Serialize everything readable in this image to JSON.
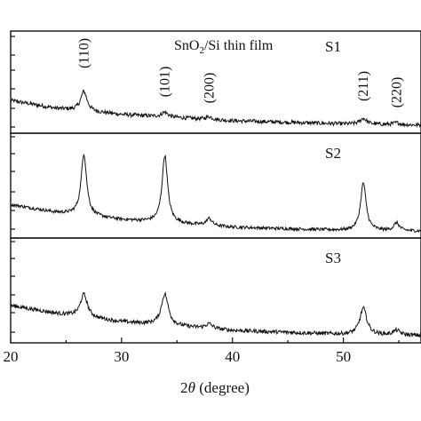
{
  "chart_data": {
    "type": "line",
    "title_prefix": "SnO",
    "title_sub": "2",
    "title_suffix": "/Si thin film",
    "xlabel_prefix": "2",
    "xlabel_theta": "θ",
    "xlabel_suffix": " (degree)",
    "ylabel": "",
    "xlim": [
      20,
      57
    ],
    "x_ticks": [
      "20",
      "30",
      "40",
      "50"
    ],
    "grid": false,
    "peak_labels": [
      {
        "text": "(110)",
        "x": 26.6
      },
      {
        "text": "(101)",
        "x": 33.9
      },
      {
        "text": "(200)",
        "x": 37.9
      },
      {
        "text": "(211)",
        "x": 51.8
      },
      {
        "text": "(220)",
        "x": 54.8
      }
    ],
    "series": [
      {
        "name": "S1",
        "baseline": [
          [
            20,
            0.68
          ],
          [
            24,
            0.48
          ],
          [
            30,
            0.32
          ],
          [
            40,
            0.16
          ],
          [
            50,
            0.08
          ],
          [
            57,
            0.05
          ]
        ],
        "peaks": [
          [
            26.6,
            0.5,
            0.35
          ],
          [
            33.9,
            0.12,
            0.35
          ],
          [
            37.9,
            0.07,
            0.35
          ],
          [
            51.8,
            0.15,
            0.35
          ],
          [
            54.8,
            0.05,
            0.35
          ]
        ],
        "noise": 0.05
      },
      {
        "name": "S2",
        "baseline": [
          [
            20,
            0.72
          ],
          [
            24,
            0.52
          ],
          [
            30,
            0.33
          ],
          [
            40,
            0.14
          ],
          [
            50,
            0.06
          ],
          [
            57,
            0.04
          ]
        ],
        "peaks": [
          [
            26.6,
            1.58,
            0.3
          ],
          [
            33.9,
            1.72,
            0.3
          ],
          [
            37.9,
            0.18,
            0.3
          ],
          [
            51.8,
            1.22,
            0.3
          ],
          [
            54.8,
            0.2,
            0.3
          ]
        ],
        "noise": 0.04
      },
      {
        "name": "S3",
        "baseline": [
          [
            20,
            0.82
          ],
          [
            24,
            0.62
          ],
          [
            30,
            0.4
          ],
          [
            40,
            0.18
          ],
          [
            50,
            0.08
          ],
          [
            57,
            0.05
          ]
        ],
        "peaks": [
          [
            26.6,
            0.58,
            0.38
          ],
          [
            33.9,
            0.8,
            0.38
          ],
          [
            37.9,
            0.12,
            0.38
          ],
          [
            51.8,
            0.68,
            0.38
          ],
          [
            54.8,
            0.12,
            0.38
          ]
        ],
        "noise": 0.05
      }
    ]
  }
}
